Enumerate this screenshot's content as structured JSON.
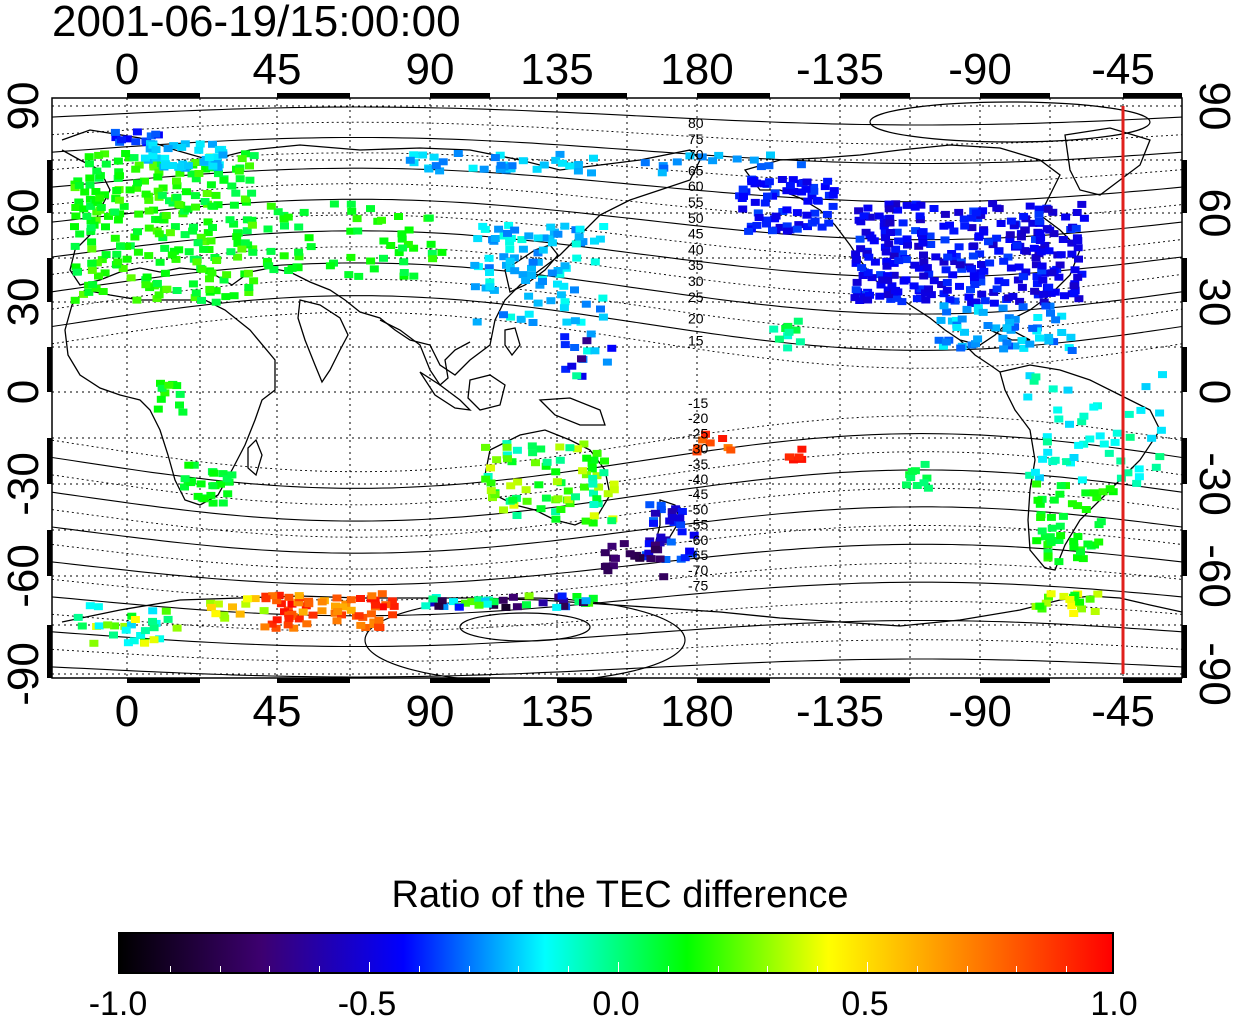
{
  "timestamp": "2001-06-19/15:00:00",
  "map": {
    "lon_ticks": [
      "0",
      "45",
      "90",
      "135",
      "180",
      "-135",
      "-90",
      "-45"
    ],
    "lat_ticks": [
      "90",
      "60",
      "30",
      "0",
      "-30",
      "-60",
      "-90"
    ],
    "contour_labels_north": [
      "80",
      "75",
      "70",
      "65",
      "60",
      "55",
      "50",
      "45",
      "40",
      "35",
      "30",
      "25",
      "20",
      "15"
    ],
    "contour_labels_south": [
      "-15",
      "-20",
      "-25",
      "-30",
      "-35",
      "-40",
      "-45",
      "-50",
      "-55",
      "-60",
      "-65",
      "-70",
      "-75"
    ],
    "terminator_longitude": -45,
    "terminator_color": "#e0201c"
  },
  "colorbar": {
    "title": "Ratio of the TEC difference",
    "min": -1.0,
    "max": 1.0,
    "tick_labels": [
      "-1.0",
      "-0.5",
      "0.0",
      "0.5",
      "1.0"
    ],
    "tick_values": [
      -1.0,
      -0.5,
      0.0,
      0.5,
      1.0
    ],
    "colors": [
      "#000000",
      "#3d0070",
      "#0000ff",
      "#00ffff",
      "#00ff00",
      "#ffff00",
      "#ff8000",
      "#ff0000"
    ]
  }
}
